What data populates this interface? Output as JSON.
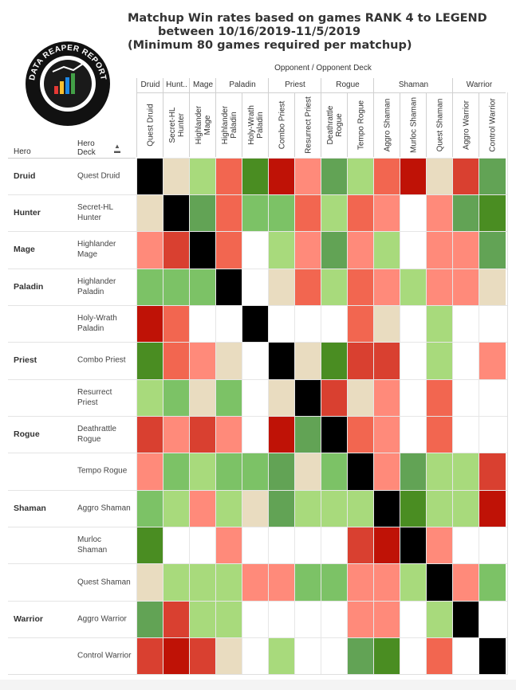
{
  "chart_data": {
    "type": "heatmap",
    "title_lines": [
      "Matchup Win rates based on games RANK 4 to LEGEND",
      "between 10/16/2019-11/5/2019",
      "(Minimum 80 games required per matchup)"
    ],
    "logo_text": "DATA REAPER REPORT",
    "column_axis_title": "Opponent  /  Opponent Deck",
    "row_axis_titles": {
      "hero": "Hero",
      "deck": "Hero Deck"
    },
    "opponent_groups": [
      {
        "label": "Druid",
        "span": 1
      },
      {
        "label": "Hunt..",
        "span": 1
      },
      {
        "label": "Mage",
        "span": 1
      },
      {
        "label": "Paladin",
        "span": 2
      },
      {
        "label": "Priest",
        "span": 2
      },
      {
        "label": "Rogue",
        "span": 2
      },
      {
        "label": "Shaman",
        "span": 3
      },
      {
        "label": "Warrior",
        "span": 2
      }
    ],
    "columns": [
      "Quest Druid",
      "Secret-HL Hunter",
      "Highlander Mage",
      "Highlander Paladin",
      "Holy-Wrath Paladin",
      "Combo Priest",
      "Resurrect Priest",
      "Deathrattle Rogue",
      "Tempo Rogue",
      "Aggro Shaman",
      "Murloc Shaman",
      "Quest Shaman",
      "Aggro Warrior",
      "Control Warrior"
    ],
    "column_label_lines": [
      [
        "Quest Druid"
      ],
      [
        "Secret-HL",
        "Hunter"
      ],
      [
        "Highlander",
        "Mage"
      ],
      [
        "Highlander",
        "Paladin"
      ],
      [
        "Holy-Wrath",
        "Paladin"
      ],
      [
        "Combo Priest"
      ],
      [
        "Resurrect Priest"
      ],
      [
        "Deathrattle",
        "Rogue"
      ],
      [
        "Tempo Rogue"
      ],
      [
        "Aggro Shaman"
      ],
      [
        "Murloc Shaman"
      ],
      [
        "Quest Shaman"
      ],
      [
        "Aggro Warrior"
      ],
      [
        "Control Warrior"
      ]
    ],
    "hero_groups": [
      {
        "label": "Druid",
        "rows": 1
      },
      {
        "label": "Hunter",
        "rows": 1
      },
      {
        "label": "Mage",
        "rows": 1
      },
      {
        "label": "Paladin",
        "rows": 2
      },
      {
        "label": "Priest",
        "rows": 2
      },
      {
        "label": "Rogue",
        "rows": 2
      },
      {
        "label": "Shaman",
        "rows": 3
      },
      {
        "label": "Warrior",
        "rows": 2
      }
    ],
    "rows": [
      "Quest Druid",
      "Secret-HL Hunter",
      "Highlander Mage",
      "Highlander Paladin",
      "Holy-Wrath Paladin",
      "Combo Priest",
      "Resurrect Priest",
      "Deathrattle Rogue",
      "Tempo Rogue",
      "Aggro Shaman",
      "Murloc Shaman",
      "Quest Shaman",
      "Aggro Warrior",
      "Control Warrior"
    ],
    "row_label_lines": [
      [
        "Quest Druid"
      ],
      [
        "Secret-HL",
        "Hunter"
      ],
      [
        "Highlander",
        "Mage"
      ],
      [
        "Highlander",
        "Paladin"
      ],
      [
        "Holy-Wrath",
        "Paladin"
      ],
      [
        "Combo Priest"
      ],
      [
        "Resurrect",
        "Priest"
      ],
      [
        "Deathrattle",
        "Rogue"
      ],
      [
        "Tempo Rogue"
      ],
      [
        "Aggro Shaman"
      ],
      [
        "Murloc",
        "Shaman"
      ],
      [
        "Quest Shaman"
      ],
      [
        "Aggro Warrior"
      ],
      [
        "Control Warrior"
      ]
    ],
    "color_scale": {
      "mirror": "#000000",
      "no_data": "#ffffff",
      "neutral": "#e9dcc0",
      "favored_1": "#a8da7c",
      "favored_2": "#7cc266",
      "favored_3": "#62a355",
      "favored_4": "#4a8d22",
      "unfavored_1": "#ff8a7a",
      "unfavored_2": "#f26650",
      "unfavored_3": "#d94030",
      "unfavored_4": "#bf1206"
    },
    "cells": [
      [
        "mirror",
        "neutral",
        "favored_1",
        "unfavored_2",
        "favored_4",
        "unfavored_4",
        "unfavored_1",
        "favored_3",
        "favored_1",
        "unfavored_2",
        "unfavored_4",
        "neutral",
        "unfavored_3",
        "favored_3"
      ],
      [
        "neutral",
        "mirror",
        "favored_3",
        "unfavored_2",
        "favored_2",
        "favored_2",
        "unfavored_2",
        "favored_1",
        "unfavored_2",
        "unfavored_1",
        "no_data",
        "unfavored_1",
        "favored_3",
        "favored_4"
      ],
      [
        "unfavored_1",
        "unfavored_3",
        "mirror",
        "unfavored_2",
        "no_data",
        "favored_1",
        "unfavored_1",
        "favored_3",
        "unfavored_1",
        "favored_1",
        "no_data",
        "unfavored_1",
        "unfavored_1",
        "favored_3"
      ],
      [
        "favored_2",
        "favored_2",
        "favored_2",
        "mirror",
        "no_data",
        "neutral",
        "unfavored_2",
        "favored_1",
        "unfavored_2",
        "unfavored_1",
        "favored_1",
        "unfavored_1",
        "unfavored_1",
        "neutral"
      ],
      [
        "unfavored_4",
        "unfavored_2",
        "no_data",
        "no_data",
        "mirror",
        "no_data",
        "no_data",
        "no_data",
        "unfavored_2",
        "neutral",
        "no_data",
        "favored_1",
        "no_data",
        "no_data"
      ],
      [
        "favored_4",
        "unfavored_2",
        "unfavored_1",
        "neutral",
        "no_data",
        "mirror",
        "neutral",
        "favored_4",
        "unfavored_3",
        "unfavored_3",
        "no_data",
        "favored_1",
        "no_data",
        "unfavored_1"
      ],
      [
        "favored_1",
        "favored_2",
        "neutral",
        "favored_2",
        "no_data",
        "neutral",
        "mirror",
        "unfavored_3",
        "neutral",
        "unfavored_1",
        "no_data",
        "unfavored_2",
        "no_data",
        "no_data"
      ],
      [
        "unfavored_3",
        "unfavored_1",
        "unfavored_3",
        "unfavored_1",
        "no_data",
        "unfavored_4",
        "favored_3",
        "mirror",
        "unfavored_2",
        "unfavored_1",
        "no_data",
        "unfavored_2",
        "no_data",
        "no_data"
      ],
      [
        "unfavored_1",
        "favored_2",
        "favored_1",
        "favored_2",
        "favored_2",
        "favored_3",
        "neutral",
        "favored_2",
        "mirror",
        "unfavored_1",
        "favored_3",
        "favored_1",
        "favored_1",
        "unfavored_3"
      ],
      [
        "favored_2",
        "favored_1",
        "unfavored_1",
        "favored_1",
        "neutral",
        "favored_3",
        "favored_1",
        "favored_1",
        "favored_1",
        "mirror",
        "favored_4",
        "favored_1",
        "favored_1",
        "unfavored_4"
      ],
      [
        "favored_4",
        "no_data",
        "no_data",
        "unfavored_1",
        "no_data",
        "no_data",
        "no_data",
        "no_data",
        "unfavored_3",
        "unfavored_4",
        "mirror",
        "unfavored_1",
        "no_data",
        "no_data"
      ],
      [
        "neutral",
        "favored_1",
        "favored_1",
        "favored_1",
        "unfavored_1",
        "unfavored_1",
        "favored_2",
        "favored_2",
        "unfavored_1",
        "unfavored_1",
        "favored_1",
        "mirror",
        "unfavored_1",
        "favored_2"
      ],
      [
        "favored_3",
        "unfavored_3",
        "favored_1",
        "favored_1",
        "no_data",
        "no_data",
        "no_data",
        "no_data",
        "unfavored_1",
        "unfavored_1",
        "no_data",
        "favored_1",
        "mirror",
        "no_data"
      ],
      [
        "unfavored_3",
        "unfavored_4",
        "unfavored_3",
        "neutral",
        "no_data",
        "favored_1",
        "no_data",
        "no_data",
        "favored_3",
        "favored_4",
        "no_data",
        "unfavored_2",
        "no_data",
        "mirror"
      ]
    ]
  }
}
